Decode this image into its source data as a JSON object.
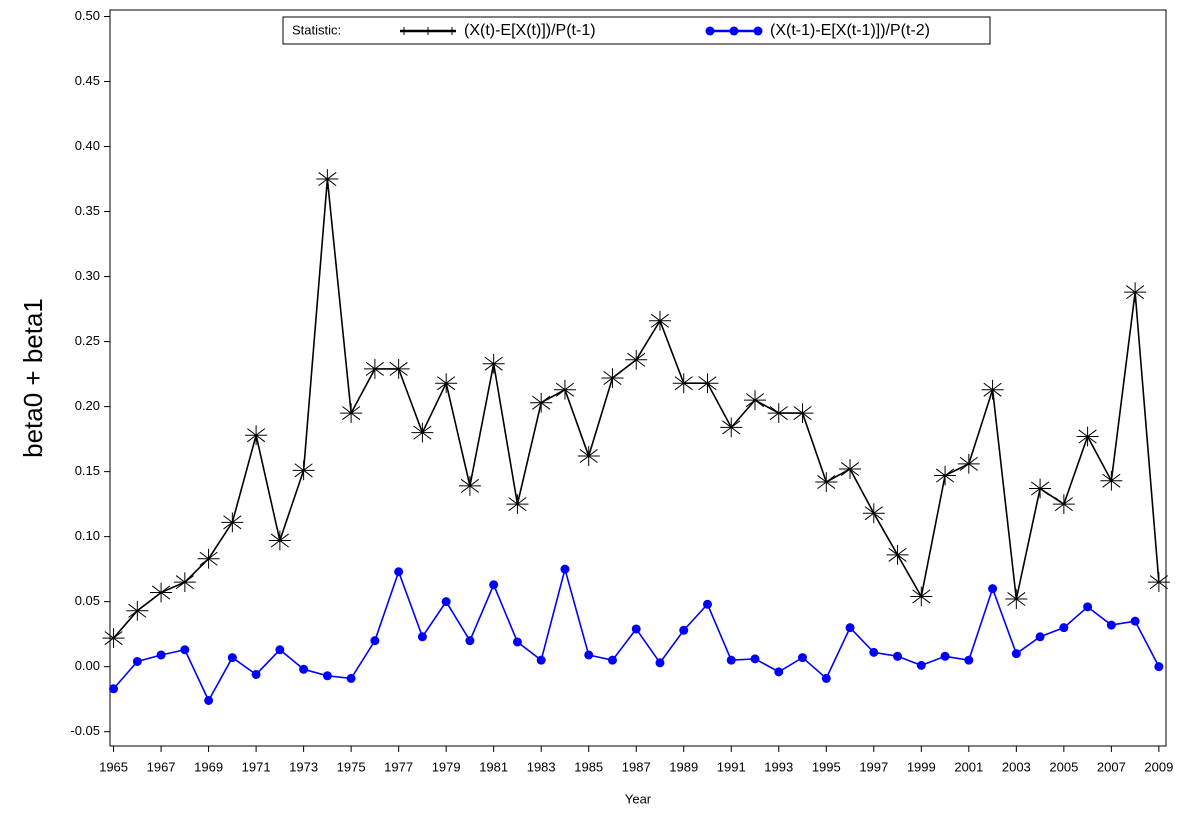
{
  "chart_data": {
    "type": "line",
    "xlabel": "Year",
    "ylabel": "beta0 + beta1",
    "legend_title": "Statistic:",
    "legend_position": "top",
    "x": [
      1965,
      1966,
      1967,
      1968,
      1969,
      1970,
      1971,
      1972,
      1973,
      1974,
      1975,
      1976,
      1977,
      1978,
      1979,
      1980,
      1981,
      1982,
      1983,
      1984,
      1985,
      1986,
      1987,
      1988,
      1989,
      1990,
      1991,
      1992,
      1993,
      1994,
      1995,
      1996,
      1997,
      1998,
      1999,
      2000,
      2001,
      2002,
      2003,
      2004,
      2005,
      2006,
      2007,
      2008,
      2009
    ],
    "series": [
      {
        "name": "(X(t)-E[X(t)])/P(t-1)",
        "color": "#000000",
        "marker": "star",
        "values": [
          0.022,
          0.043,
          0.057,
          0.065,
          0.083,
          0.111,
          0.178,
          0.097,
          0.151,
          0.375,
          0.195,
          0.229,
          0.229,
          0.18,
          0.218,
          0.139,
          0.233,
          0.125,
          0.203,
          0.213,
          0.162,
          0.222,
          0.236,
          0.266,
          0.218,
          0.218,
          0.184,
          0.205,
          0.195,
          0.195,
          0.142,
          0.152,
          0.118,
          0.086,
          0.054,
          0.147,
          0.156,
          0.213,
          0.052,
          0.137,
          0.125,
          0.177,
          0.143,
          0.288,
          0.065
        ]
      },
      {
        "name": "(X(t-1)-E[X(t-1)])/P(t-2)",
        "color": "#0000ff",
        "marker": "dot",
        "values": [
          -0.017,
          0.004,
          0.009,
          0.013,
          -0.026,
          0.007,
          -0.006,
          0.013,
          -0.002,
          -0.007,
          -0.009,
          0.02,
          0.073,
          0.023,
          0.05,
          0.02,
          0.063,
          0.019,
          0.005,
          0.075,
          0.009,
          0.005,
          0.029,
          0.003,
          0.028,
          0.048,
          0.005,
          0.006,
          -0.004,
          0.007,
          -0.009,
          0.03,
          0.011,
          0.008,
          0.001,
          0.008,
          0.005,
          0.06,
          0.01,
          0.023,
          0.03,
          0.046,
          0.032,
          0.035,
          0.0
        ]
      }
    ],
    "xlim": [
      1964.85,
      2009.3
    ],
    "xticks": [
      1965,
      1967,
      1969,
      1971,
      1973,
      1975,
      1977,
      1979,
      1981,
      1983,
      1985,
      1987,
      1989,
      1991,
      1993,
      1995,
      1997,
      1999,
      2001,
      2003,
      2005,
      2007,
      2009
    ],
    "ylim": [
      -0.061,
      0.505
    ],
    "yticks": [
      {
        "value": -0.05,
        "label": "-0.05"
      },
      {
        "value": 0,
        "label": "0.00"
      },
      {
        "value": 0.05,
        "label": "0.05"
      },
      {
        "value": 0.1,
        "label": "0.10"
      },
      {
        "value": 0.15,
        "label": "0.15"
      },
      {
        "value": 0.2,
        "label": "0.20"
      },
      {
        "value": 0.25,
        "label": "0.25"
      },
      {
        "value": 0.3,
        "label": "0.30"
      },
      {
        "value": 0.35,
        "label": "0.35"
      },
      {
        "value": 0.4,
        "label": "0.40"
      },
      {
        "value": 0.45,
        "label": "0.45"
      },
      {
        "value": 0.5,
        "label": "0.50"
      }
    ],
    "grid": false
  }
}
